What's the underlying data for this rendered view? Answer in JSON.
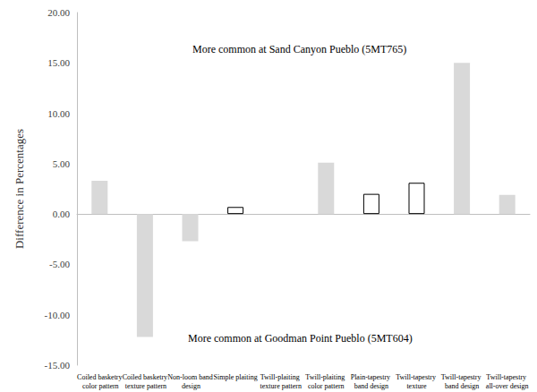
{
  "chart_data": {
    "type": "bar",
    "y_label": "Difference in Percentages",
    "annotations": [
      "More common at Sand Canyon Pueblo (5MT765)",
      "More common at Goodman Point Pueblo (5MT604)"
    ],
    "categories": [
      "Coiled basketry color pattern",
      "Coiled basketry texture pattern",
      "Non-loom band design",
      "Simple plaiting",
      "Twill-plaiting texture pattern",
      "Twill-plaiting color pattern",
      "Plain-tapestry band design",
      "Twill-tapestry texture",
      "Twill-tapestry band design",
      "Twill-tapestry all-over design"
    ],
    "values": [
      3.3,
      -12.2,
      -2.7,
      0.7,
      0,
      5.1,
      2.0,
      3.1,
      15.0,
      1.9
    ],
    "colors": [
      "#d9d9d9",
      "#d9d9d9",
      "#d9d9d9",
      "#ffffff",
      "#d9d9d9",
      "#d9d9d9",
      "#ffffff",
      "#ffffff",
      "#d9d9d9",
      "#d9d9d9"
    ],
    "ylim": [
      -15,
      20
    ],
    "yticks": [
      {
        "value": -15,
        "label": "-15.00"
      },
      {
        "value": -10,
        "label": "-10.00"
      },
      {
        "value": -5,
        "label": "-5.00"
      },
      {
        "value": 0,
        "label": "0.00"
      },
      {
        "value": 5,
        "label": "5.00"
      },
      {
        "value": 10,
        "label": "10.00"
      },
      {
        "value": 15,
        "label": "15.00"
      },
      {
        "value": 20,
        "label": "20.00"
      }
    ],
    "grid": false
  }
}
